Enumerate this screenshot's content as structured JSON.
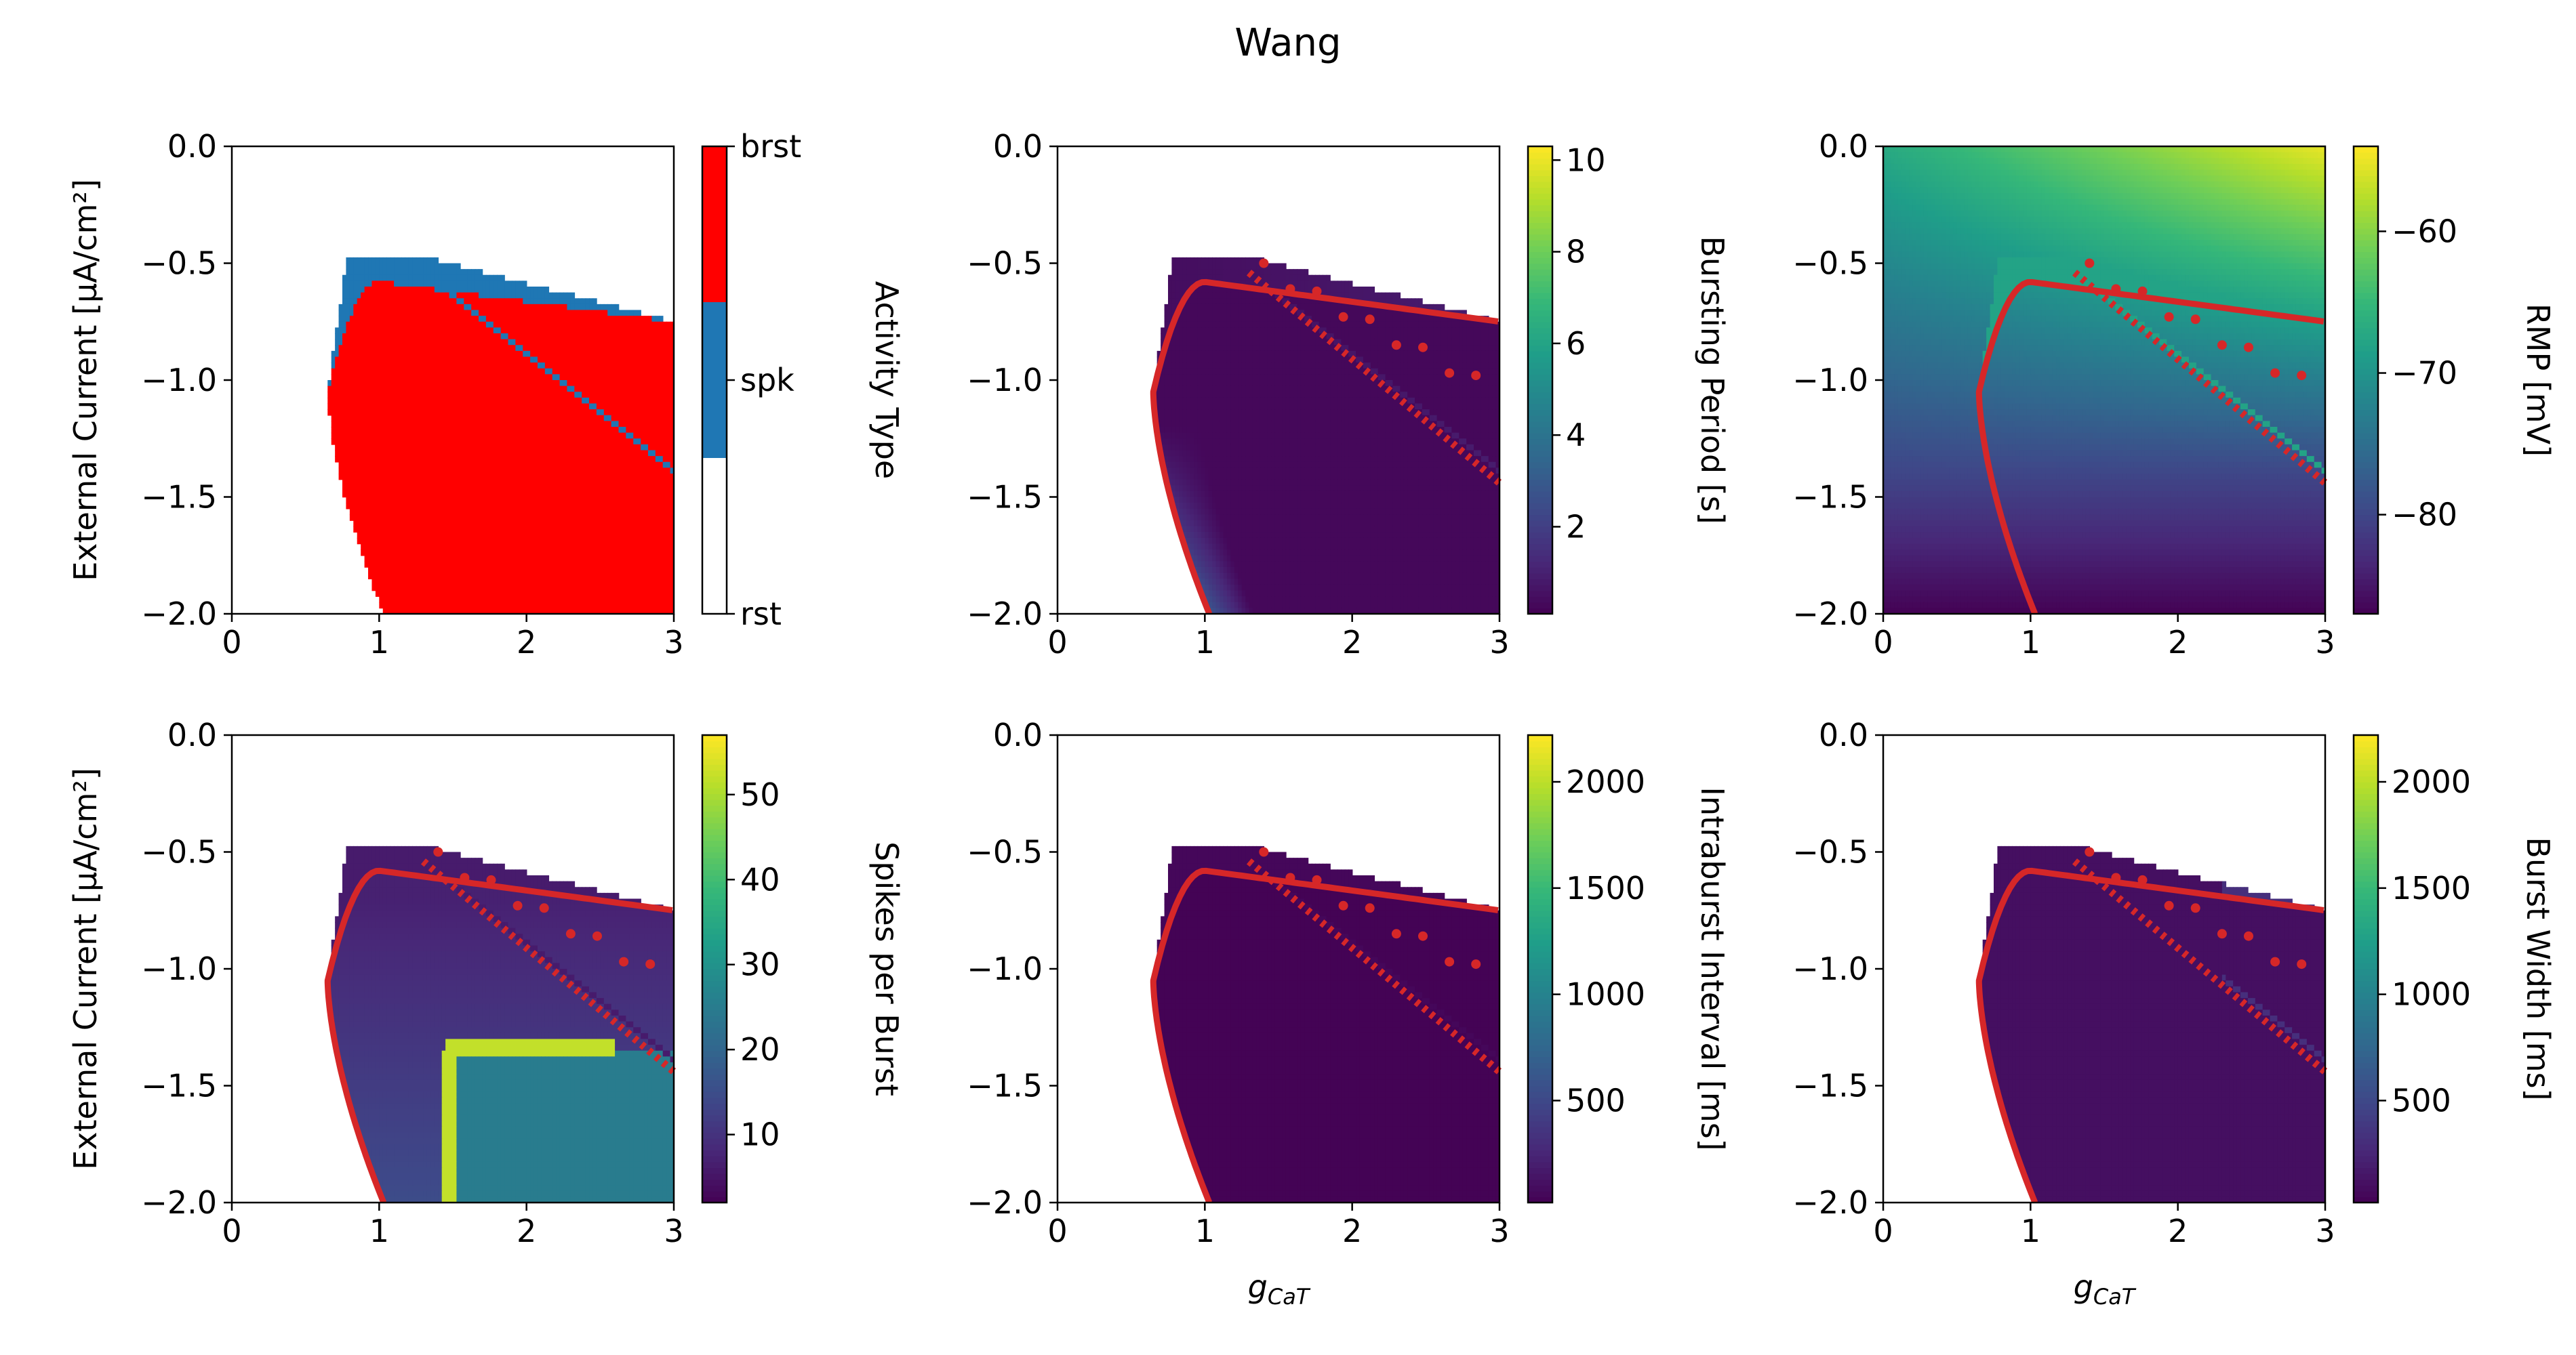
{
  "figure": {
    "title": "Wang"
  },
  "colors": {
    "rest": "#ffffff",
    "spiking": "#1f77b4",
    "bursting": "#ff0000",
    "boundary": "#d62728",
    "axis": "#000000",
    "viridis": [
      "#440154",
      "#482878",
      "#3e4989",
      "#31688e",
      "#26828e",
      "#1f9e89",
      "#35b779",
      "#6ece58",
      "#b5de2b",
      "#fde725"
    ]
  },
  "chart_data": [
    {
      "id": "activity",
      "type": "heatmap",
      "title": "",
      "xlabel": "",
      "ylabel": "External Current [μA/cm²]",
      "xlim": [
        0,
        3
      ],
      "ylim": [
        -2,
        0
      ],
      "xticks": [
        "0",
        "1",
        "2",
        "3"
      ],
      "yticks": [
        "0.0",
        "−0.5",
        "−1.0",
        "−1.5",
        "−2.0"
      ],
      "colorbar": {
        "label": "Activity Type",
        "type": "categorical",
        "ticks": [
          "rst",
          "spk",
          "brst"
        ]
      },
      "regions": {
        "rest": "background",
        "spiking_band": "thin band (~0.1 μA/cm²) along the upper edge of the active region, from g_CaT ≈ 0.7 to 3.0",
        "bursting": "left boundary g_CaT ≈ 0.65 at I = −1.0, 1.0 at I = −2.0; top edge I ≈ −0.57 at g_CaT = 1.0 to −0.75 at g_CaT = 3.0",
        "spiking_diagonal": "thin spiking line from (1.2, −0.5) to (3.0, −1.45)"
      }
    },
    {
      "id": "bursting-period",
      "type": "heatmap",
      "title": "",
      "xlabel": "",
      "ylabel": "",
      "xlim": [
        0,
        3
      ],
      "ylim": [
        -2,
        0
      ],
      "xticks": [
        "0",
        "1",
        "2",
        "3"
      ],
      "yticks": [
        "0.0",
        "−0.5",
        "−1.0",
        "−1.5",
        "−2.0"
      ],
      "colorbar": {
        "label": "Bursting Period [s]",
        "range": [
          0.1,
          10.3
        ],
        "ticks": [
          "2",
          "4",
          "6",
          "8",
          "10"
        ],
        "tick_values": [
          2,
          4,
          6,
          8,
          10
        ]
      },
      "field": "≈0.3 s over the bursting region; rises to ≈3 s along the left boundary near g_CaT ≈ 0.9, I ≈ −1.9"
    },
    {
      "id": "rmp",
      "type": "heatmap",
      "title": "",
      "xlabel": "",
      "ylabel": "",
      "xlim": [
        0,
        3
      ],
      "ylim": [
        -2,
        0
      ],
      "xticks": [
        "0",
        "1",
        "2",
        "3"
      ],
      "yticks": [
        "0.0",
        "−0.5",
        "−1.0",
        "−1.5",
        "−2.0"
      ],
      "colorbar": {
        "label": "RMP [mV]",
        "range": [
          -87,
          -54
        ],
        "ticks": [
          "−60",
          "−70",
          "−80"
        ],
        "tick_values": [
          -60,
          -70,
          -80
        ]
      },
      "field": "≈−67 mV at (0, 0) rising to ≈−55 mV at (3, 0); ≈−80 mV at I = −1.4 falling to ≈−87 mV at I = −2.0; ≈−68 mV in the spiking band"
    },
    {
      "id": "spikes-per-burst",
      "type": "heatmap",
      "title": "",
      "xlabel": "",
      "ylabel": "External Current [μA/cm²]",
      "xlim": [
        0,
        3
      ],
      "ylim": [
        -2,
        0
      ],
      "xticks": [
        "0",
        "1",
        "2",
        "3"
      ],
      "yticks": [
        "0.0",
        "−0.5",
        "−1.0",
        "−1.5",
        "−2.0"
      ],
      "colorbar": {
        "label": "Spikes per Burst",
        "range": [
          2,
          57
        ],
        "ticks": [
          "10",
          "20",
          "30",
          "40",
          "50"
        ],
        "tick_values": [
          10,
          20,
          30,
          40,
          50
        ]
      },
      "field": "≈8 over most of the bursting region; ≈25 in the sub-region g_CaT > 1.45, I < −1.35; a bright ridge (≈52) traces its left and top edges"
    },
    {
      "id": "intraburst-interval",
      "type": "heatmap",
      "title": "",
      "xlabel": "g_CaT",
      "ylabel": "",
      "xlim": [
        0,
        3
      ],
      "ylim": [
        -2,
        0
      ],
      "xticks": [
        "0",
        "1",
        "2",
        "3"
      ],
      "yticks": [
        "0.0",
        "−0.5",
        "−1.0",
        "−1.5",
        "−2.0"
      ],
      "colorbar": {
        "label": "Intraburst Interval [ms]",
        "range": [
          20,
          2220
        ],
        "ticks": [
          "500",
          "1000",
          "1500",
          "2000"
        ],
        "tick_values": [
          500,
          1000,
          1500,
          2000
        ]
      },
      "field": "≈30 ms throughout the bursting region"
    },
    {
      "id": "burst-width",
      "type": "heatmap",
      "title": "",
      "xlabel": "g_CaT",
      "ylabel": "",
      "xlim": [
        0,
        3
      ],
      "ylim": [
        -2,
        0
      ],
      "xticks": [
        "0",
        "1",
        "2",
        "3"
      ],
      "yticks": [
        "0.0",
        "−0.5",
        "−1.0",
        "−1.5",
        "−2.0"
      ],
      "colorbar": {
        "label": "Burst Width [ms]",
        "range": [
          20,
          2220
        ],
        "ticks": [
          "500",
          "1000",
          "1500",
          "2000"
        ],
        "tick_values": [
          500,
          1000,
          1500,
          2000
        ]
      },
      "field": "≈100 ms throughout the bursting region, ≈300 ms in the upper-right part of the spiking band"
    }
  ]
}
